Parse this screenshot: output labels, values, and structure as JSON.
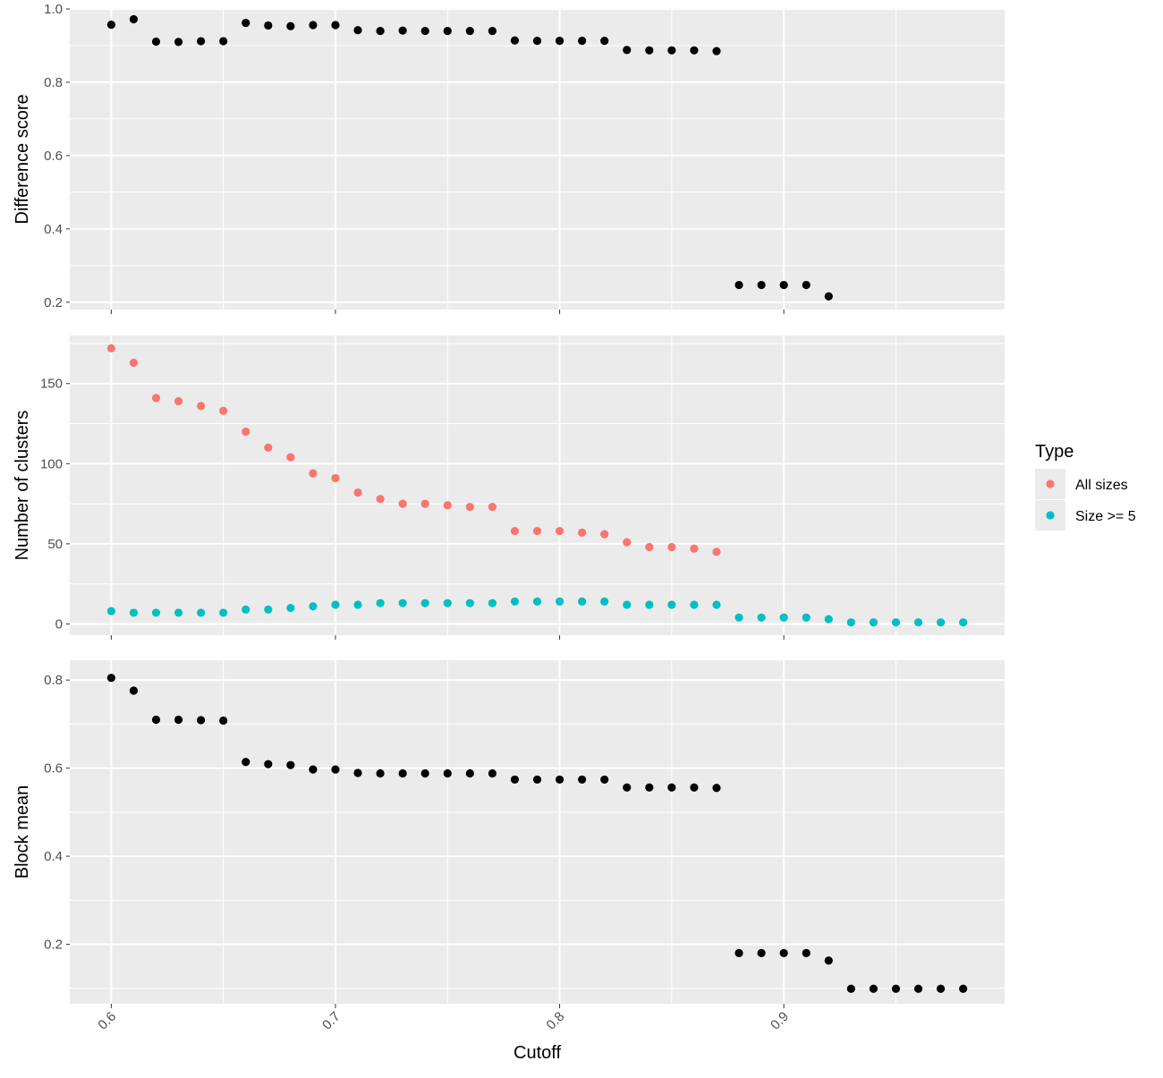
{
  "chart_data": {
    "type": "scatter",
    "layout": "3 vertically stacked panels sharing x axis",
    "xlabel": "Cutoff",
    "x_ticks": [
      "0.6",
      "0.7",
      "0.8",
      "0.9"
    ],
    "xlim": [
      0.5815,
      0.9985
    ],
    "legend": {
      "title": "Type",
      "placement": "right",
      "entries": [
        {
          "name": "All sizes",
          "color": "#F8766D"
        },
        {
          "name": "Size >= 5",
          "color": "#00BFC4"
        }
      ]
    },
    "panels": [
      {
        "ylabel": "Difference score",
        "ylim": [
          0.18,
          1.0
        ],
        "y_ticks": [
          "0.2",
          "0.4",
          "0.6",
          "0.8",
          "1.0"
        ],
        "y_tick_values": [
          0.2,
          0.4,
          0.6,
          0.8,
          1.0
        ],
        "series": [
          {
            "color": "#000000",
            "x": [
              0.6,
              0.61,
              0.62,
              0.63,
              0.64,
              0.65,
              0.66,
              0.67,
              0.68,
              0.69,
              0.7,
              0.71,
              0.72,
              0.73,
              0.74,
              0.75,
              0.76,
              0.77,
              0.78,
              0.79,
              0.8,
              0.81,
              0.82,
              0.83,
              0.84,
              0.85,
              0.86,
              0.87,
              0.88,
              0.89,
              0.9,
              0.91,
              0.92
            ],
            "y": [
              0.957,
              0.972,
              0.911,
              0.91,
              0.912,
              0.912,
              0.962,
              0.955,
              0.953,
              0.956,
              0.956,
              0.942,
              0.94,
              0.941,
              0.94,
              0.94,
              0.94,
              0.94,
              0.914,
              0.913,
              0.913,
              0.913,
              0.913,
              0.888,
              0.887,
              0.887,
              0.887,
              0.885,
              0.247,
              0.247,
              0.247,
              0.247,
              0.216
            ]
          }
        ]
      },
      {
        "ylabel": "Number of clusters",
        "ylim": [
          -7,
          180
        ],
        "y_ticks": [
          "0",
          "50",
          "100",
          "150"
        ],
        "y_tick_values": [
          0,
          50,
          100,
          150
        ],
        "series": [
          {
            "name": "All sizes",
            "color": "#F8766D",
            "x": [
              0.6,
              0.61,
              0.62,
              0.63,
              0.64,
              0.65,
              0.66,
              0.67,
              0.68,
              0.69,
              0.7,
              0.71,
              0.72,
              0.73,
              0.74,
              0.75,
              0.76,
              0.77,
              0.78,
              0.79,
              0.8,
              0.81,
              0.82,
              0.83,
              0.84,
              0.85,
              0.86,
              0.87
            ],
            "y": [
              172,
              163,
              141,
              139,
              136,
              133,
              120,
              110,
              104,
              94,
              91,
              82,
              78,
              75,
              75,
              74,
              73,
              73,
              58,
              58,
              58,
              57,
              56,
              51,
              48,
              48,
              47,
              45
            ]
          },
          {
            "name": "Size >= 5",
            "color": "#00BFC4",
            "x": [
              0.6,
              0.61,
              0.62,
              0.63,
              0.64,
              0.65,
              0.66,
              0.67,
              0.68,
              0.69,
              0.7,
              0.71,
              0.72,
              0.73,
              0.74,
              0.75,
              0.76,
              0.77,
              0.78,
              0.79,
              0.8,
              0.81,
              0.82,
              0.83,
              0.84,
              0.85,
              0.86,
              0.87,
              0.88,
              0.89,
              0.9,
              0.91,
              0.92,
              0.93,
              0.94,
              0.95,
              0.96,
              0.97,
              0.98
            ],
            "y": [
              8,
              7,
              7,
              7,
              7,
              7,
              9,
              9,
              10,
              11,
              12,
              12,
              13,
              13,
              13,
              13,
              13,
              13,
              14,
              14,
              14,
              14,
              14,
              12,
              12,
              12,
              12,
              12,
              4,
              4,
              4,
              4,
              3,
              1,
              1,
              1,
              1,
              1,
              1
            ]
          }
        ]
      },
      {
        "ylabel": "Block mean",
        "ylim": [
          0.065,
          0.845
        ],
        "y_ticks": [
          "0.2",
          "0.4",
          "0.6",
          "0.8"
        ],
        "y_tick_values": [
          0.2,
          0.4,
          0.6,
          0.8
        ],
        "series": [
          {
            "color": "#000000",
            "x": [
              0.6,
              0.61,
              0.62,
              0.63,
              0.64,
              0.65,
              0.66,
              0.67,
              0.68,
              0.69,
              0.7,
              0.71,
              0.72,
              0.73,
              0.74,
              0.75,
              0.76,
              0.77,
              0.78,
              0.79,
              0.8,
              0.81,
              0.82,
              0.83,
              0.84,
              0.85,
              0.86,
              0.87,
              0.88,
              0.89,
              0.9,
              0.91,
              0.92,
              0.93,
              0.94,
              0.95,
              0.96,
              0.97,
              0.98
            ],
            "y": [
              0.805,
              0.776,
              0.71,
              0.71,
              0.709,
              0.708,
              0.614,
              0.609,
              0.607,
              0.597,
              0.597,
              0.589,
              0.588,
              0.588,
              0.588,
              0.588,
              0.588,
              0.588,
              0.574,
              0.574,
              0.574,
              0.574,
              0.574,
              0.556,
              0.556,
              0.556,
              0.556,
              0.555,
              0.18,
              0.18,
              0.18,
              0.18,
              0.163,
              0.099,
              0.099,
              0.099,
              0.099,
              0.099,
              0.099
            ]
          }
        ]
      }
    ]
  }
}
